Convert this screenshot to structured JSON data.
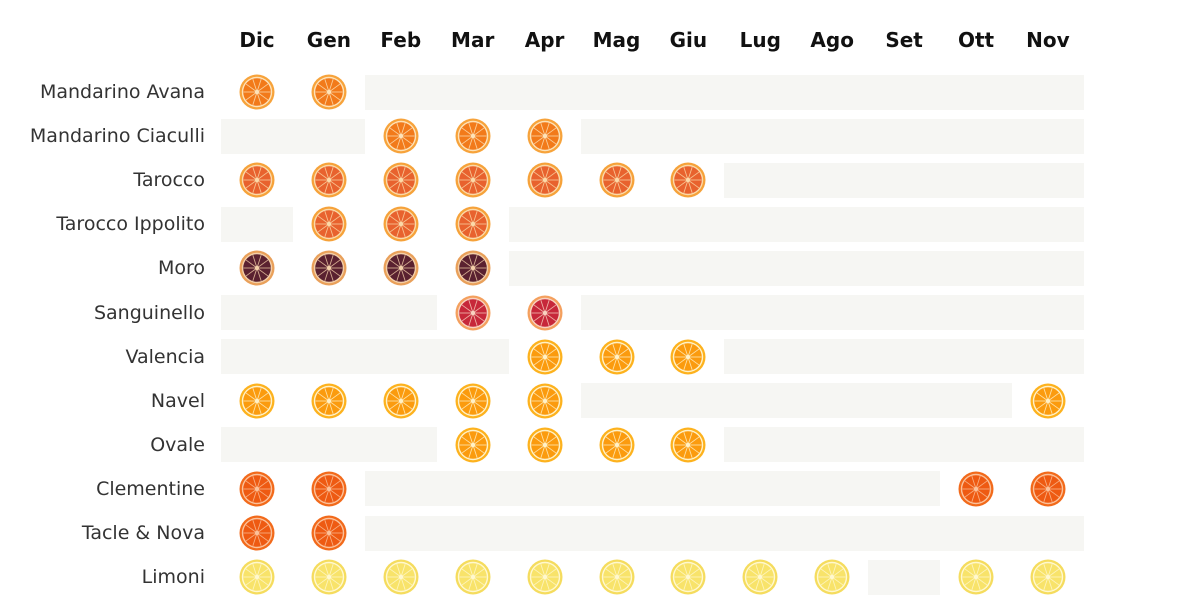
{
  "chart_data": {
    "type": "table",
    "title": "",
    "months": [
      "Dic",
      "Gen",
      "Feb",
      "Mar",
      "Apr",
      "Mag",
      "Giu",
      "Lug",
      "Ago",
      "Set",
      "Ott",
      "Nov"
    ],
    "rows": [
      {
        "label": "Mandarino Avana",
        "kind": "mandarin",
        "months": [
          "Dic",
          "Gen"
        ]
      },
      {
        "label": "Mandarino Ciaculli",
        "kind": "mandarin",
        "months": [
          "Feb",
          "Mar",
          "Apr"
        ]
      },
      {
        "label": "Tarocco",
        "kind": "tarocco",
        "months": [
          "Dic",
          "Gen",
          "Feb",
          "Mar",
          "Apr",
          "Mag",
          "Giu"
        ]
      },
      {
        "label": "Tarocco Ippolito",
        "kind": "tarocco",
        "months": [
          "Gen",
          "Feb",
          "Mar"
        ]
      },
      {
        "label": "Moro",
        "kind": "moro",
        "months": [
          "Dic",
          "Gen",
          "Feb",
          "Mar"
        ]
      },
      {
        "label": "Sanguinello",
        "kind": "sanguinello",
        "months": [
          "Mar",
          "Apr"
        ]
      },
      {
        "label": "Valencia",
        "kind": "orange",
        "months": [
          "Apr",
          "Mag",
          "Giu"
        ]
      },
      {
        "label": "Navel",
        "kind": "orange",
        "months": [
          "Dic",
          "Gen",
          "Feb",
          "Mar",
          "Apr",
          "Nov"
        ]
      },
      {
        "label": "Ovale",
        "kind": "orange",
        "months": [
          "Mar",
          "Apr",
          "Mag",
          "Giu"
        ]
      },
      {
        "label": "Clementine",
        "kind": "clementine",
        "months": [
          "Dic",
          "Gen",
          "Ott",
          "Nov"
        ]
      },
      {
        "label": "Tacle & Nova",
        "kind": "clementine",
        "months": [
          "Dic",
          "Gen"
        ]
      },
      {
        "label": "Limoni",
        "kind": "lemon",
        "months": [
          "Dic",
          "Gen",
          "Feb",
          "Mar",
          "Apr",
          "Mag",
          "Giu",
          "Lug",
          "Ago",
          "Ott",
          "Nov"
        ]
      }
    ],
    "colors": {
      "mandarin": {
        "rind": "#f7a33b",
        "flesh": "#f27a1a",
        "pith": "#fde2b8"
      },
      "tarocco": {
        "rind": "#f6a23a",
        "flesh": "#e8622e",
        "pith": "#fbd9a8"
      },
      "moro": {
        "rind": "#e9a05a",
        "flesh": "#5a2130",
        "pith": "#f3cfa8"
      },
      "sanguinello": {
        "rind": "#f4a05e",
        "flesh": "#c7283a",
        "pith": "#f8d2c0"
      },
      "orange": {
        "rind": "#fdb21e",
        "flesh": "#fb9b0e",
        "pith": "#fff1c7"
      },
      "clementine": {
        "rind": "#f26a1b",
        "flesh": "#ee5a12",
        "pith": "#fbc19a"
      },
      "lemon": {
        "rind": "#f5dc5e",
        "flesh": "#f8e36a",
        "pith": "#fff8cf"
      },
      "bar": "#f6f6f3"
    }
  }
}
